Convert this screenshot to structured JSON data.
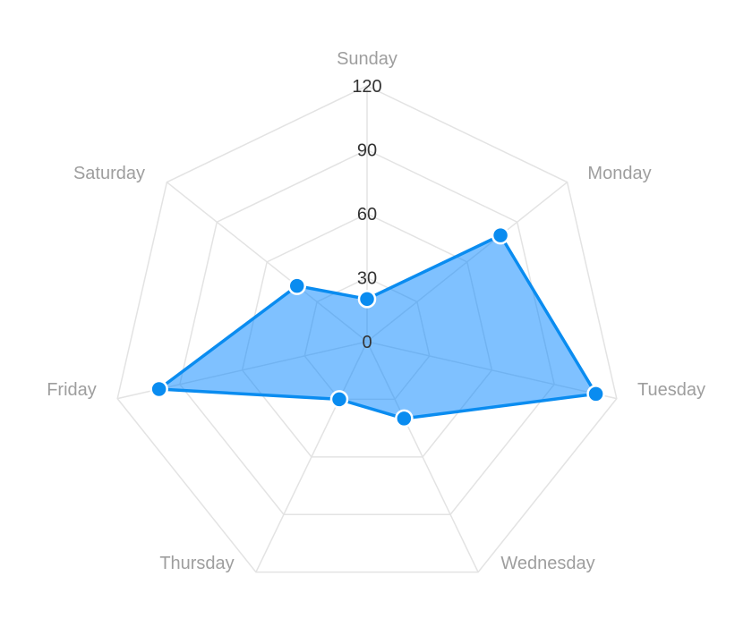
{
  "chart_data": {
    "type": "radar",
    "categories": [
      "Sunday",
      "Monday",
      "Tuesday",
      "Wednesday",
      "Thursday",
      "Friday",
      "Saturday"
    ],
    "series": [
      {
        "values": [
          20,
          80,
          110,
          40,
          30,
          100,
          42
        ]
      }
    ],
    "rlim": [
      0,
      120
    ],
    "ticks": [
      "0",
      "30",
      "60",
      "90",
      "120"
    ],
    "grid": true,
    "legend": "none",
    "colors": {
      "series_stroke": "#0a8cf0",
      "series_fill": "rgba(0,132,255,0.5)",
      "grid": "#e3e3e3",
      "category_label": "#9e9e9e",
      "tick_label": "#333333"
    }
  }
}
